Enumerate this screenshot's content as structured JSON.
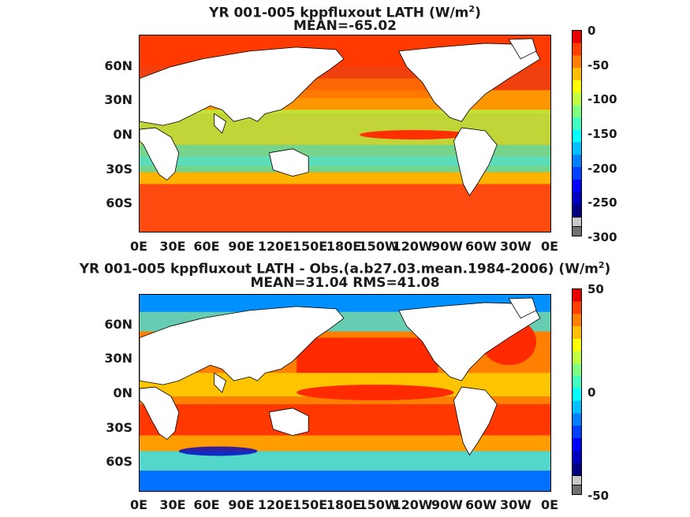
{
  "top": {
    "title_line1": "YR 001-005 kppfluxout  LATH (W/m",
    "title_sup": "2",
    "title_close": ")",
    "title_line2": "MEAN=-65.02",
    "lat_ticks": [
      "60N",
      "30N",
      "0N",
      "30S",
      "60S"
    ],
    "lon_ticks": [
      "0E",
      "30E",
      "60E",
      "90E",
      "120E",
      "150E",
      "180E",
      "150W",
      "120W",
      "90W",
      "60W",
      "30W",
      "0E"
    ],
    "colorbar": {
      "ticks": [
        "0",
        "-50",
        "-100",
        "-150",
        "-200",
        "-250",
        "-300"
      ],
      "colors": [
        "#e60000",
        "#ff4000",
        "#ff8000",
        "#ffbf00",
        "#ffff00",
        "#c0ff40",
        "#80ff80",
        "#40ffc0",
        "#00ffff",
        "#00bfff",
        "#0080ff",
        "#0040ff",
        "#0000ff",
        "#0000c0",
        "#000080"
      ],
      "range": [
        -300,
        0
      ]
    },
    "mean": -65.02
  },
  "bottom": {
    "title_line1": "YR 001-005 kppfluxout LATH - Obs.(a.b27.03.mean.1984-2006) (W/m",
    "title_sup": "2",
    "title_close": ")",
    "title_line2": "MEAN=31.04 RMS=41.08",
    "lat_ticks": [
      "60N",
      "30N",
      "0N",
      "30S",
      "60S"
    ],
    "lon_ticks": [
      "0E",
      "30E",
      "60E",
      "90E",
      "120E",
      "150E",
      "180E",
      "150W",
      "120W",
      "90W",
      "60W",
      "30W",
      "0E"
    ],
    "colorbar": {
      "ticks": [
        "50",
        "0",
        "-50"
      ],
      "colors": [
        "#e60000",
        "#ff4000",
        "#ff8000",
        "#ffbf00",
        "#ffff00",
        "#c0ff40",
        "#80ff80",
        "#40ffc0",
        "#00ffff",
        "#00bfff",
        "#0080ff",
        "#0040ff",
        "#0000ff",
        "#0000c0",
        "#000080"
      ],
      "range": [
        -50,
        50
      ]
    },
    "mean": 31.04,
    "rms": 41.08
  }
}
